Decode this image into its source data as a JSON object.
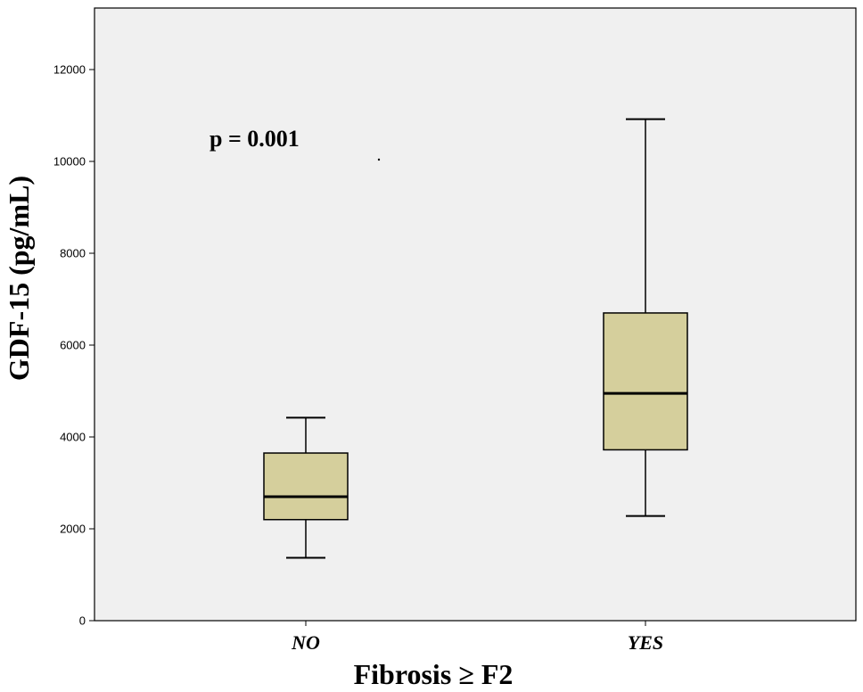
{
  "chart_data": {
    "type": "box",
    "title": "",
    "xlabel": "Fibrosis ≥ F2",
    "ylabel": "GDF-15 (pg/mL)",
    "ylim": [
      0,
      13000
    ],
    "yticks": [
      0,
      2000,
      4000,
      6000,
      8000,
      10000,
      12000
    ],
    "ytick_labels": [
      "0",
      "2000",
      "4000",
      "6000",
      "8000",
      "10000",
      "12000"
    ],
    "categories": [
      "NO",
      "YES"
    ],
    "boxes": [
      {
        "category": "NO",
        "min": 1370,
        "q1": 2200,
        "median": 2700,
        "q3": 3650,
        "max": 4420
      },
      {
        "category": "YES",
        "min": 2280,
        "q1": 3720,
        "median": 4950,
        "q3": 6700,
        "max": 10920
      }
    ],
    "annotation": "p = 0.001",
    "grid": false,
    "legend": "none",
    "colors": {
      "box_fill": "#d5cf9c",
      "plot_background": "#f0f0f0",
      "stroke": "#000000"
    }
  }
}
